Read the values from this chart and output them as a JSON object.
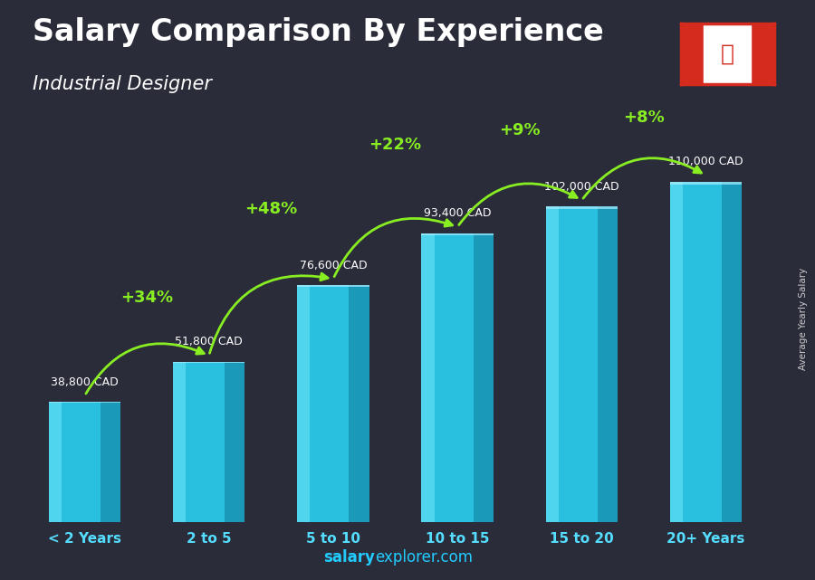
{
  "title": "Salary Comparison By Experience",
  "subtitle": "Industrial Designer",
  "categories": [
    "< 2 Years",
    "2 to 5",
    "5 to 10",
    "10 to 15",
    "15 to 20",
    "20+ Years"
  ],
  "values": [
    38800,
    51800,
    76600,
    93400,
    102000,
    110000
  ],
  "value_labels": [
    "38,800 CAD",
    "51,800 CAD",
    "76,600 CAD",
    "93,400 CAD",
    "102,000 CAD",
    "110,000 CAD"
  ],
  "pct_labels": [
    "+34%",
    "+48%",
    "+22%",
    "+9%",
    "+8%"
  ],
  "bar_color_main": "#29bfdf",
  "bar_color_light": "#55d8f0",
  "bar_color_dark": "#1a9ab8",
  "bg_color": "#2a2c3a",
  "title_color": "#ffffff",
  "subtitle_color": "#ffffff",
  "value_label_color": "#ffffff",
  "pct_color": "#88ee22",
  "arrow_color": "#88ee22",
  "ylabel": "Average Yearly Salary",
  "footer_salary": "salary",
  "footer_explorer": "explorer",
  "footer_com": ".com",
  "ylim": [
    0,
    135000
  ],
  "title_fontsize": 24,
  "subtitle_fontsize": 15,
  "bar_width": 0.58
}
